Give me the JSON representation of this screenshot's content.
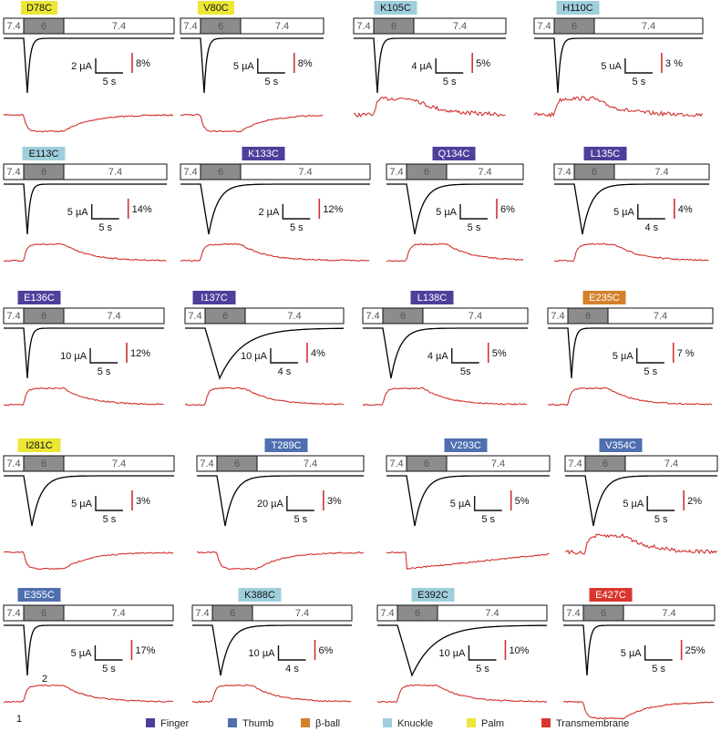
{
  "colors": {
    "Finger": "#4e3f9b",
    "Thumb": "#4f6fb0",
    "β-ball": "#d4812b",
    "Knuckle": "#9fcfdc",
    "Palm": "#ece637",
    "Transmembrane": "#d9362f",
    "current_trace": "#000000",
    "fluorescence_trace": "#d0312d",
    "ph6_bar": "#8c8c8c"
  },
  "legend": [
    {
      "label": "Finger",
      "color": "#4e3f9b"
    },
    {
      "label": "Thumb",
      "color": "#4f6fb0"
    },
    {
      "label": "β-ball",
      "color": "#d4812b"
    },
    {
      "label": "Knuckle",
      "color": "#9fcfdc"
    },
    {
      "label": "Palm",
      "color": "#ece637"
    },
    {
      "label": "Transmembrane",
      "color": "#d9362f"
    }
  ],
  "chart_data": {
    "type": "line",
    "ph_labels": [
      "7.4",
      "6",
      "7.4"
    ],
    "annotations": [
      "1",
      "2"
    ],
    "panels": [
      {
        "mutant": "D78C",
        "domain": "Palm",
        "current_scale": "2 µA",
        "time_scale": "5 s",
        "fluor_scale": "8%",
        "current_shape": "fast",
        "fluor_shape": "down"
      },
      {
        "mutant": "V80C",
        "domain": "Palm",
        "current_scale": "5 µA",
        "time_scale": "5 s",
        "fluor_scale": "8%",
        "current_shape": "fast",
        "fluor_shape": "down"
      },
      {
        "mutant": "K105C",
        "domain": "Knuckle",
        "current_scale": "4 µA",
        "time_scale": "5 s",
        "fluor_scale": "5%",
        "current_shape": "fast",
        "fluor_shape": "up_noisy"
      },
      {
        "mutant": "H110C",
        "domain": "Knuckle",
        "current_scale": "5 uA",
        "time_scale": "5 s",
        "fluor_scale": "3 %",
        "current_shape": "fast",
        "fluor_shape": "up_noisy"
      },
      {
        "mutant": "E113C",
        "domain": "Knuckle",
        "current_scale": "5 µA",
        "time_scale": "5 s",
        "fluor_scale": "14%",
        "current_shape": "fast",
        "fluor_shape": "up"
      },
      {
        "mutant": "K133C",
        "domain": "Finger",
        "current_scale": "2 µA",
        "time_scale": "5 s",
        "fluor_scale": "12%",
        "current_shape": "mid",
        "fluor_shape": "up"
      },
      {
        "mutant": "Q134C",
        "domain": "Finger",
        "current_scale": "5 µA",
        "time_scale": "5 s",
        "fluor_scale": "6%",
        "current_shape": "mid",
        "fluor_shape": "up"
      },
      {
        "mutant": "L135C",
        "domain": "Finger",
        "current_scale": "5 µA",
        "time_scale": "4 s",
        "fluor_scale": "4%",
        "current_shape": "mid",
        "fluor_shape": "up"
      },
      {
        "mutant": "E136C",
        "domain": "Finger",
        "current_scale": "10 µA",
        "time_scale": "5 s",
        "fluor_scale": "12%",
        "current_shape": "fast",
        "fluor_shape": "up"
      },
      {
        "mutant": "I137C",
        "domain": "Finger",
        "current_scale": "10 µA",
        "time_scale": "4 s",
        "fluor_scale": "4%",
        "current_shape": "slow",
        "fluor_shape": "up"
      },
      {
        "mutant": "L138C",
        "domain": "Finger",
        "current_scale": "4 µA",
        "time_scale": "5s",
        "fluor_scale": "5%",
        "current_shape": "mid",
        "fluor_shape": "up"
      },
      {
        "mutant": "E235C",
        "domain": "β-ball",
        "current_scale": "5 µA",
        "time_scale": "5 s",
        "fluor_scale": "7 %",
        "current_shape": "fast",
        "fluor_shape": "up"
      },
      {
        "mutant": "I281C",
        "domain": "Palm",
        "current_scale": "5 µA",
        "time_scale": "5 s",
        "fluor_scale": "3%",
        "current_shape": "mid",
        "fluor_shape": "down"
      },
      {
        "mutant": "T289C",
        "domain": "Thumb",
        "current_scale": "20 µA",
        "time_scale": "5 s",
        "fluor_scale": "3%",
        "current_shape": "mid",
        "fluor_shape": "down"
      },
      {
        "mutant": "V293C",
        "domain": "Thumb",
        "current_scale": "5 µA",
        "time_scale": "5 s",
        "fluor_scale": "5%",
        "current_shape": "mid",
        "fluor_shape": "down_slope"
      },
      {
        "mutant": "V354C",
        "domain": "Thumb",
        "current_scale": "5 µA",
        "time_scale": "5 s",
        "fluor_scale": "2%",
        "current_shape": "mid",
        "fluor_shape": "up_noisy"
      },
      {
        "mutant": "E355C",
        "domain": "Thumb",
        "current_scale": "5 µA",
        "time_scale": "5 s",
        "fluor_scale": "17%",
        "current_shape": "fast",
        "fluor_shape": "up"
      },
      {
        "mutant": "K388C",
        "domain": "Knuckle",
        "current_scale": "10 µA",
        "time_scale": "4 s",
        "fluor_scale": "6%",
        "current_shape": "mid",
        "fluor_shape": "up"
      },
      {
        "mutant": "E392C",
        "domain": "Knuckle",
        "current_scale": "10 µA",
        "time_scale": "5 s",
        "fluor_scale": "10%",
        "current_shape": "slow",
        "fluor_shape": "up"
      },
      {
        "mutant": "E427C",
        "domain": "Transmembrane",
        "current_scale": "5 µA",
        "time_scale": "5 s",
        "fluor_scale": "25%",
        "current_shape": "fast",
        "fluor_shape": "down"
      }
    ]
  }
}
